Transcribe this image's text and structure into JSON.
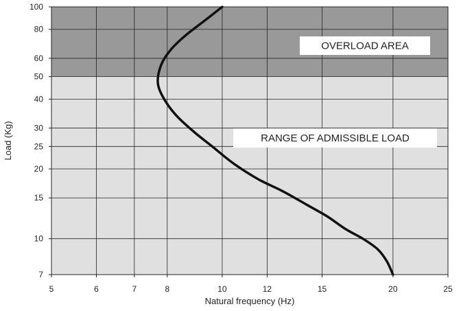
{
  "chart_data": {
    "type": "line",
    "title": "",
    "xlabel": "Natural frequency (Hz)",
    "ylabel": "Load (Kg)",
    "x_scale": "log",
    "y_scale": "log",
    "xlim": [
      5,
      25
    ],
    "ylim": [
      7,
      100
    ],
    "x_ticks": [
      5,
      6,
      7,
      8,
      10,
      12,
      15,
      20,
      25
    ],
    "y_ticks": [
      7,
      10,
      15,
      20,
      25,
      30,
      40,
      50,
      60,
      80,
      100
    ],
    "grid": true,
    "series": [
      {
        "x": [
          20,
          19.5,
          18.8,
          17.7,
          16.5,
          15.3,
          14.1,
          12.8,
          11.6,
          10.5,
          9.6,
          8.9,
          8.3,
          7.9,
          7.7,
          7.8,
          8.1,
          8.6,
          9.3,
          10
        ],
        "y": [
          7,
          8,
          9,
          10,
          11,
          12.5,
          14,
          16,
          18,
          21,
          25,
          29,
          34,
          40,
          47,
          56,
          65,
          75,
          87,
          100
        ]
      }
    ],
    "regions": [
      {
        "label": "OVERLOAD AREA",
        "y_from": 50,
        "y_to": 100,
        "color": "#999999"
      },
      {
        "label": "RANGE OF ADMISSIBLE LOAD",
        "y_from": 7,
        "y_to": 50,
        "color": "#e0e0e0"
      }
    ]
  }
}
